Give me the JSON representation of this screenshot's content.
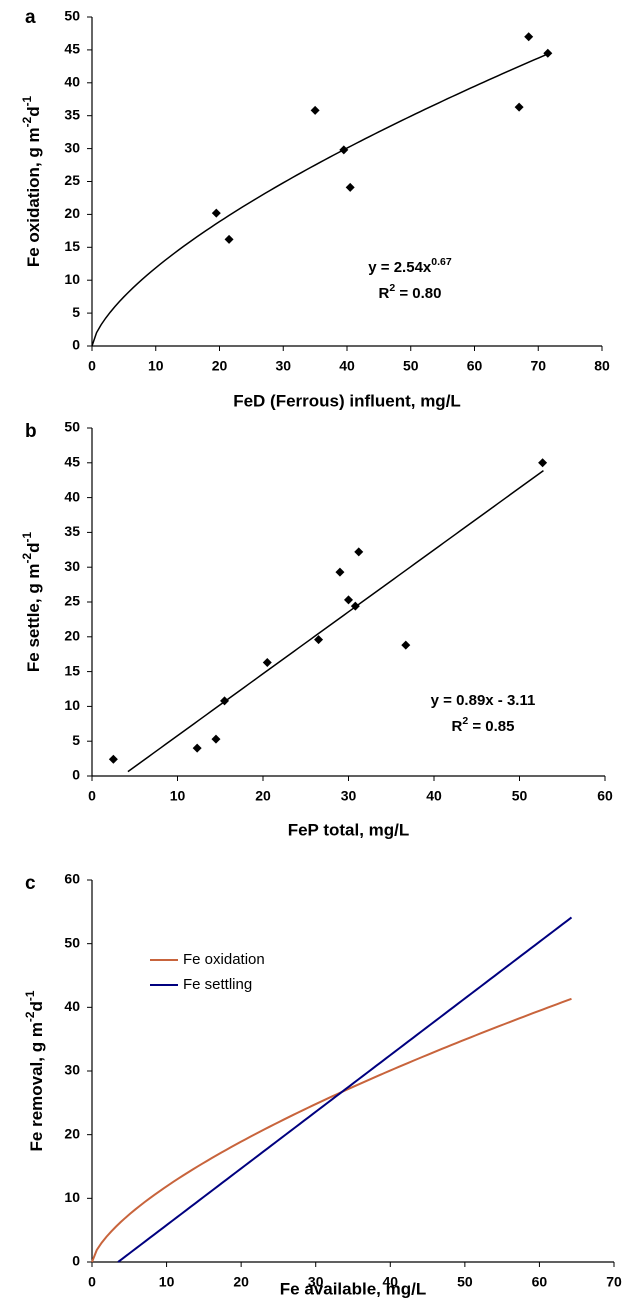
{
  "chart_data": [
    {
      "type": "scatter",
      "panel_label": "a",
      "xlabel": "FeD (Ferrous) influent, mg/L",
      "ylabel": [
        "Fe oxidation, g m",
        "-2",
        "d",
        "-1"
      ],
      "x": [
        19.5,
        21.5,
        35,
        39.5,
        40.5,
        67,
        68.5,
        71.5
      ],
      "values": [
        20.2,
        16.2,
        35.8,
        29.8,
        24.1,
        36.3,
        47,
        44.5
      ],
      "color": "#000000",
      "fit": {
        "kind": "power",
        "a": 2.54,
        "b": 0.67,
        "x_range": [
          0,
          71.5
        ]
      },
      "annotations": [
        [
          "y = 2.54x",
          "0.67"
        ],
        [
          "R",
          "2",
          " = 0.80"
        ]
      ],
      "xlim": [
        0,
        80
      ],
      "xticks": [
        0,
        10,
        20,
        30,
        40,
        50,
        60,
        70,
        80
      ],
      "ylim": [
        0,
        50
      ],
      "yticks": [
        0,
        5,
        10,
        15,
        20,
        25,
        30,
        35,
        40,
        45,
        50
      ]
    },
    {
      "type": "scatter",
      "panel_label": "b",
      "xlabel": "FeP total, mg/L",
      "ylabel": [
        "Fe settle, g m",
        "-2",
        "d",
        "-1"
      ],
      "x": [
        2.5,
        12.3,
        14.5,
        15.5,
        20.5,
        26.5,
        29,
        30,
        30.8,
        31.2,
        36.7,
        52.7
      ],
      "values": [
        2.4,
        4,
        5.3,
        10.8,
        16.3,
        19.6,
        29.3,
        25.3,
        24.4,
        32.2,
        18.8,
        45
      ],
      "color": "#000000",
      "fit": {
        "kind": "linear",
        "a": 0.89,
        "b": -3.11,
        "x_range": [
          4.2,
          52.8
        ]
      },
      "annotations": [
        [
          "y = 0.89x - 3.11"
        ],
        [
          "R",
          "2",
          " = 0.85"
        ]
      ],
      "xlim": [
        0,
        60
      ],
      "xticks": [
        0,
        10,
        20,
        30,
        40,
        50,
        60
      ],
      "ylim": [
        0,
        50
      ],
      "yticks": [
        0,
        5,
        10,
        15,
        20,
        25,
        30,
        35,
        40,
        45,
        50
      ]
    },
    {
      "type": "line",
      "panel_label": "c",
      "xlabel": "Fe available, mg/L",
      "ylabel": [
        "Fe removal, g m",
        "-2",
        "d",
        "-1"
      ],
      "series": [
        {
          "name": "Fe oxidation",
          "color": "#c8643c",
          "fit": {
            "kind": "power",
            "a": 2.54,
            "b": 0.67,
            "x_range": [
              0,
              64.3
            ]
          }
        },
        {
          "name": "Fe settling",
          "color": "#00007f",
          "fit": {
            "kind": "linear",
            "a": 0.89,
            "b": -3.11,
            "x_range": [
              3.5,
              64.3
            ]
          }
        }
      ],
      "xlim": [
        0,
        70
      ],
      "xticks": [
        0,
        10,
        20,
        30,
        40,
        50,
        60,
        70
      ],
      "ylim": [
        0,
        60
      ],
      "yticks": [
        0,
        10,
        20,
        30,
        40,
        50,
        60
      ]
    }
  ]
}
